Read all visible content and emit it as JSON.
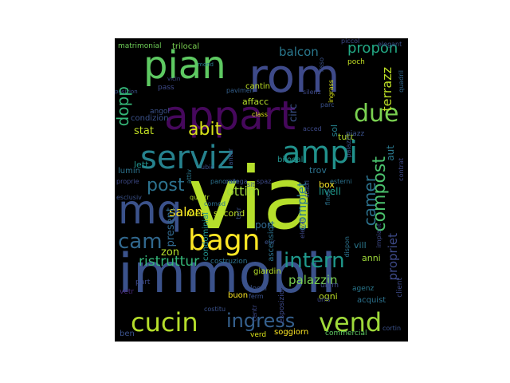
{
  "wordcloud": {
    "background": "#000000",
    "words": [
      {
        "text": "via",
        "color": "#b5de2b"
      },
      {
        "text": "immobil",
        "color": "#3b528b"
      },
      {
        "text": "appart",
        "color": "#46085c"
      },
      {
        "text": "rom",
        "color": "#3e4a89"
      },
      {
        "text": "pian",
        "color": "#5ec962"
      },
      {
        "text": "mq",
        "color": "#3b528b"
      },
      {
        "text": "serviz",
        "color": "#26828e"
      },
      {
        "text": "ampi",
        "color": "#21918c"
      },
      {
        "text": "cucin",
        "color": "#b5de2b"
      },
      {
        "text": "vend",
        "color": "#9fda3a"
      },
      {
        "text": "bagn",
        "color": "#fde725"
      },
      {
        "text": "due",
        "color": "#7ad151"
      },
      {
        "text": "intern",
        "color": "#1f988b"
      },
      {
        "text": "ingress",
        "color": "#35608d"
      },
      {
        "text": "compost",
        "color": "#4ac16d"
      },
      {
        "text": "cam",
        "color": "#31688e"
      },
      {
        "text": "camer",
        "color": "#2c728e"
      },
      {
        "text": "dopp",
        "color": "#35b779"
      },
      {
        "text": "abit",
        "color": "#d8e219"
      },
      {
        "text": "post",
        "color": "#2c728e"
      },
      {
        "text": "balcon",
        "color": "#2a788e"
      },
      {
        "text": "propon",
        "color": "#22a884"
      },
      {
        "text": "terrazz",
        "color": "#bddf26"
      },
      {
        "text": "ristruttur",
        "color": "#35b779"
      },
      {
        "text": "propriet",
        "color": "#3e4a89"
      },
      {
        "text": "palazzin",
        "color": "#7ad151"
      },
      {
        "text": "complet",
        "color": "#2a788e"
      },
      {
        "text": "present",
        "color": "#31688e"
      },
      {
        "text": "salon",
        "color": "#fde725"
      },
      {
        "text": "ottim",
        "color": "#9fda3a"
      },
      {
        "text": "stat",
        "color": "#c2df23"
      },
      {
        "text": "lett",
        "color": "#21918c"
      },
      {
        "text": "circ",
        "color": "#3b528b"
      },
      {
        "text": "aut",
        "color": "#2a788e"
      },
      {
        "text": "sol",
        "color": "#26828e"
      },
      {
        "text": "box",
        "color": "#fde725"
      },
      {
        "text": "zon",
        "color": "#b5de2b"
      },
      {
        "text": "metr",
        "color": "#d8e219"
      },
      {
        "text": "second",
        "color": "#bddf26"
      },
      {
        "text": "livell",
        "color": "#1f988b"
      },
      {
        "text": "trov",
        "color": "#2c728e"
      },
      {
        "text": "soggiorn",
        "color": "#fde725"
      },
      {
        "text": "giardin",
        "color": "#b5de2b"
      },
      {
        "text": "condominial",
        "color": "#21918c"
      },
      {
        "text": "esposizion",
        "color": "#3e4a89"
      },
      {
        "text": "commercial",
        "color": "#5ec962"
      },
      {
        "text": "agenz",
        "color": "#2a788e"
      },
      {
        "text": "ascension",
        "color": "#2c728e"
      },
      {
        "text": "bilocal",
        "color": "#21918c"
      },
      {
        "text": "trilocal",
        "color": "#7ad151"
      },
      {
        "text": "matrimonial",
        "color": "#6ece58"
      },
      {
        "text": "cantin",
        "color": "#bddf26"
      },
      {
        "text": "affacc",
        "color": "#b5de2b"
      },
      {
        "text": "condizion",
        "color": "#3b528b"
      },
      {
        "text": "lumin",
        "color": "#2c728e"
      },
      {
        "text": "port",
        "color": "#31688e"
      },
      {
        "text": "vill",
        "color": "#2a788e"
      },
      {
        "text": "anni",
        "color": "#9fda3a"
      },
      {
        "text": "tutt",
        "color": "#b5de2b"
      },
      {
        "text": "ogni",
        "color": "#bddf26"
      },
      {
        "text": "acquist",
        "color": "#2c728e"
      },
      {
        "text": "client",
        "color": "#3e4a89"
      },
      {
        "text": "uitim",
        "color": "#3e4a89"
      },
      {
        "text": "buon",
        "color": "#fde725"
      },
      {
        "text": "local",
        "color": "#3b528b"
      },
      {
        "text": "verd",
        "color": "#d8e219"
      },
      {
        "text": "part",
        "color": "#3e4a89"
      },
      {
        "text": "ben",
        "color": "#3b528b"
      },
      {
        "text": "vetr",
        "color": "#482878"
      },
      {
        "text": "piccol",
        "color": "#3e4a89"
      },
      {
        "text": "elegant",
        "color": "#3b528b"
      },
      {
        "text": "quadril",
        "color": "#31688e"
      },
      {
        "text": "pavimen",
        "color": "#35608d"
      },
      {
        "text": "fines",
        "color": "#2c728e"
      },
      {
        "text": "parc",
        "color": "#3b528b"
      },
      {
        "text": "impiant",
        "color": "#3e4a89"
      },
      {
        "text": "costruzion",
        "color": "#2c728e"
      },
      {
        "text": "stabil",
        "color": "#3b528b"
      },
      {
        "text": "contrat",
        "color": "#3e4a89"
      },
      {
        "text": "piazz",
        "color": "#3b528b"
      },
      {
        "text": "panoram",
        "color": "#2c728e"
      },
      {
        "text": "poch",
        "color": "#c2df23"
      },
      {
        "text": "class",
        "color": "#d8e219"
      },
      {
        "text": "angol",
        "color": "#3b528b"
      },
      {
        "text": "pass",
        "color": "#3e4a89"
      },
      {
        "text": "comod",
        "color": "#2c728e"
      },
      {
        "text": "quattr",
        "color": "#b5de2b"
      },
      {
        "text": "palazz",
        "color": "#3b528b"
      },
      {
        "text": "ubic",
        "color": "#3b528b"
      },
      {
        "text": "attiv",
        "color": "#2a788e"
      },
      {
        "text": "dispon",
        "color": "#2c728e"
      },
      {
        "text": "silenz",
        "color": "#3e4a89"
      },
      {
        "text": "costitu",
        "color": "#3b528b"
      },
      {
        "text": "collega",
        "color": "#3b528b"
      },
      {
        "text": "ingrass",
        "color": "#d8e219"
      },
      {
        "text": "spaz",
        "color": "#3e4a89"
      },
      {
        "text": "terr",
        "color": "#3b528b"
      },
      {
        "text": "cortin",
        "color": "#3b528b"
      },
      {
        "text": "unis",
        "color": "#3e4a89"
      },
      {
        "text": "ferm",
        "color": "#3b528b"
      },
      {
        "text": "centr",
        "color": "#3e4a89"
      },
      {
        "text": "esclusiv",
        "color": "#3b528b"
      },
      {
        "text": "esterni",
        "color": "#2c728e"
      },
      {
        "text": "eur",
        "color": "#3b528b"
      },
      {
        "text": "acced",
        "color": "#3e4a89"
      },
      {
        "text": "mond",
        "color": "#2a788e"
      },
      {
        "text": "fisso",
        "color": "#3b528b"
      },
      {
        "text": "proprie",
        "color": "#3e4a89"
      },
      {
        "text": "posizion",
        "color": "#3b528b"
      },
      {
        "text": "elevat",
        "color": "#3e4a89"
      },
      {
        "text": "sit",
        "color": "#3b528b"
      },
      {
        "text": "vicin",
        "color": "#3e4a89"
      },
      {
        "text": "anter",
        "color": "#3b528b"
      }
    ]
  }
}
